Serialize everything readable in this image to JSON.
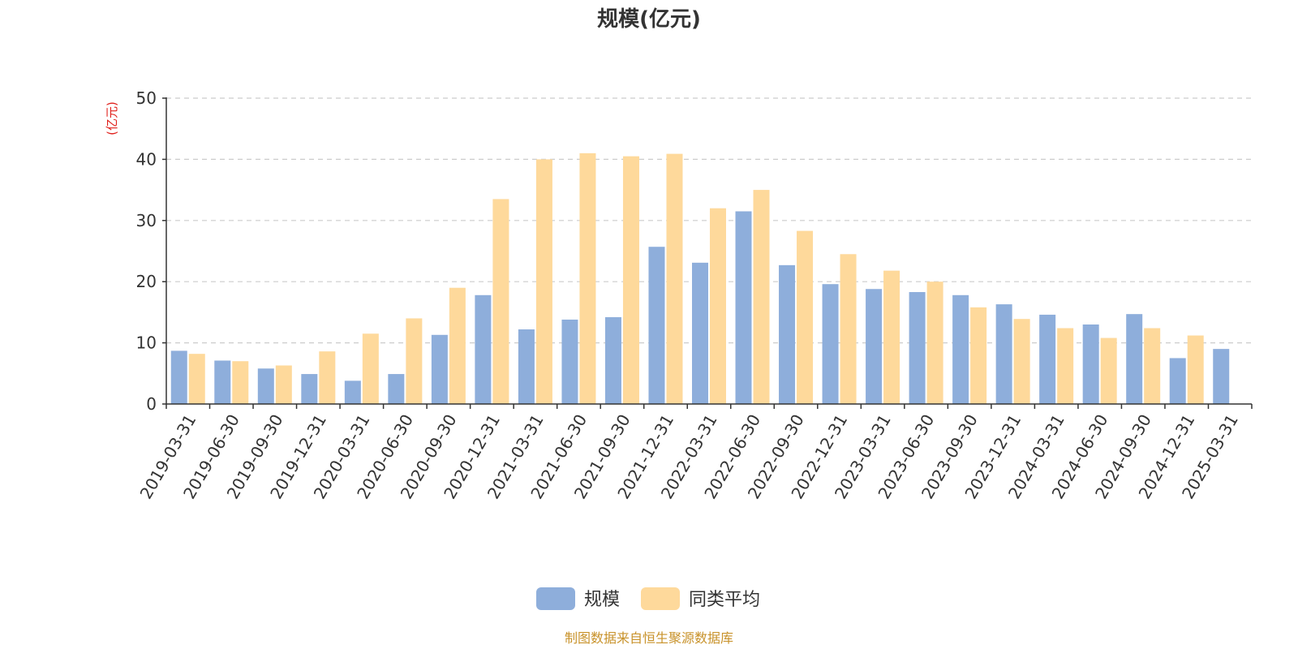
{
  "chart_data": {
    "type": "bar",
    "title": "规模(亿元)",
    "ylabel": "(亿元)",
    "xlabel": "",
    "ylim": [
      0,
      50
    ],
    "yticks": [
      0,
      10,
      20,
      30,
      40,
      50
    ],
    "grid": true,
    "legend_position": "bottom-center",
    "categories": [
      "2019-03-31",
      "2019-06-30",
      "2019-09-30",
      "2019-12-31",
      "2020-03-31",
      "2020-06-30",
      "2020-09-30",
      "2020-12-31",
      "2021-03-31",
      "2021-06-30",
      "2021-09-30",
      "2021-12-31",
      "2022-03-31",
      "2022-06-30",
      "2022-09-30",
      "2022-12-31",
      "2023-03-31",
      "2023-06-30",
      "2023-09-30",
      "2023-12-31",
      "2024-03-31",
      "2024-06-30",
      "2024-09-30",
      "2024-12-31",
      "2025-03-31"
    ],
    "series": [
      {
        "name": "规模",
        "color": "#8eaedb",
        "values": [
          8.7,
          7.1,
          5.8,
          4.9,
          3.8,
          4.9,
          11.3,
          17.8,
          12.2,
          13.8,
          14.2,
          25.7,
          23.1,
          31.5,
          22.7,
          19.6,
          18.8,
          18.3,
          17.8,
          16.3,
          14.6,
          13.0,
          14.7,
          7.5,
          9.0
        ]
      },
      {
        "name": "同类平均",
        "color": "#fed99b",
        "values": [
          8.2,
          7.0,
          6.3,
          8.6,
          11.5,
          14.0,
          19.0,
          33.5,
          40.0,
          41.0,
          40.5,
          40.9,
          32.0,
          35.0,
          28.3,
          24.5,
          21.8,
          20.0,
          15.8,
          13.9,
          12.4,
          10.8,
          12.4,
          11.2,
          null
        ]
      }
    ]
  },
  "source_note": "制图数据来自恒生聚源数据库"
}
